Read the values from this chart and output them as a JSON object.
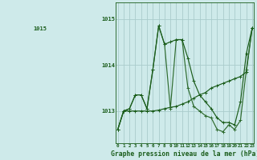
{
  "xlabel": "Graphe pression niveau de la mer (hPa)",
  "bg_color": "#ceeaea",
  "grid_color": "#b8d8d8",
  "line_color1": "#1a5c1a",
  "line_color2": "#2e6b2e",
  "line_color3": "#2e6b2e",
  "x_hours": [
    0,
    1,
    2,
    3,
    4,
    5,
    6,
    7,
    8,
    9,
    10,
    11,
    12,
    13,
    14,
    15,
    16,
    17,
    18,
    19,
    20,
    21,
    22,
    23
  ],
  "series1": [
    1012.6,
    1013.0,
    1013.05,
    1013.35,
    1013.35,
    1013.05,
    1013.9,
    1014.85,
    1014.45,
    1014.5,
    1014.55,
    1014.55,
    1014.15,
    1013.65,
    1013.35,
    1013.2,
    1013.05,
    1012.85,
    1012.75,
    1012.75,
    1012.7,
    1013.2,
    1014.25,
    1014.8
  ],
  "series2": [
    1012.6,
    1013.0,
    1013.05,
    1013.35,
    1013.35,
    1013.05,
    1013.9,
    1014.85,
    1014.45,
    1013.05,
    1014.55,
    1014.55,
    1013.5,
    1013.1,
    1013.0,
    1012.9,
    1012.85,
    1012.6,
    1012.55,
    1012.7,
    1012.6,
    1012.8,
    1013.9,
    1014.8
  ],
  "series3": [
    1012.6,
    1013.0,
    1013.0,
    1013.0,
    1013.0,
    1013.0,
    1013.0,
    1013.02,
    1013.05,
    1013.08,
    1013.1,
    1013.15,
    1013.2,
    1013.28,
    1013.35,
    1013.4,
    1013.5,
    1013.55,
    1013.6,
    1013.65,
    1013.7,
    1013.75,
    1013.85,
    1014.8
  ],
  "ylim_min": 1012.3,
  "ylim_max": 1015.35,
  "yticks": [
    1013,
    1014,
    1015
  ],
  "top_label": "1015",
  "figwidth": 3.2,
  "figheight": 2.0,
  "dpi": 100
}
